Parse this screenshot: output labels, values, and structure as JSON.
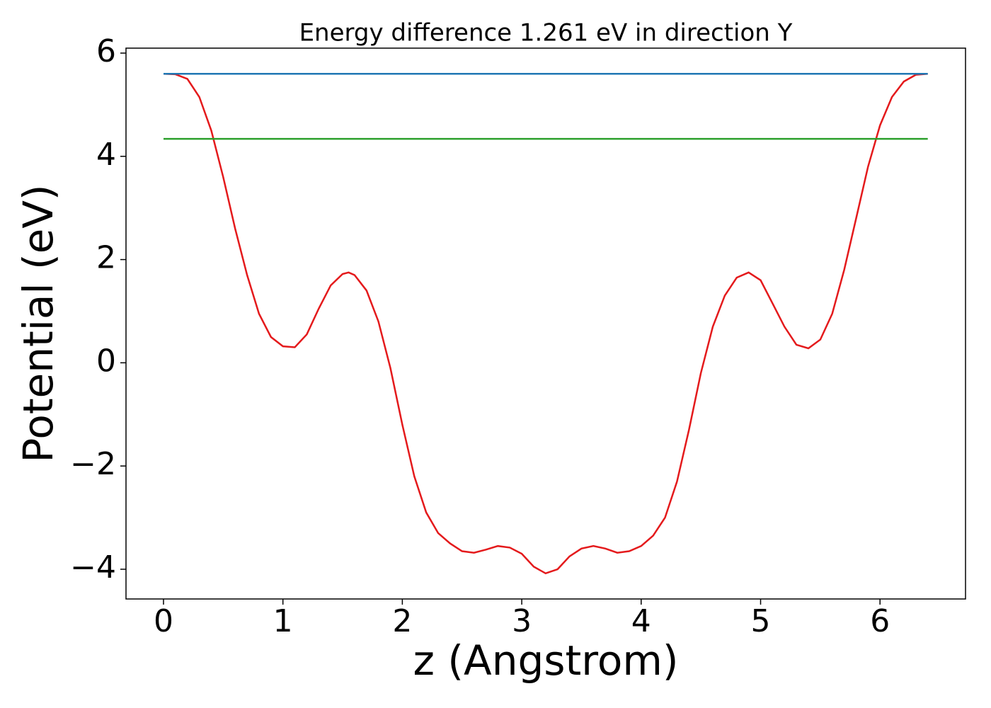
{
  "chart_data": {
    "type": "line",
    "title": "Energy difference 1.261 eV in direction Y",
    "xlabel": "z (Angstrom)",
    "ylabel": "Potential (eV)",
    "xlim": [
      -0.314,
      6.716
    ],
    "ylim": [
      -4.576,
      6.096
    ],
    "xticks": [
      0,
      1,
      2,
      3,
      4,
      5,
      6
    ],
    "yticks": [
      {
        "value": -4,
        "label": "−4"
      },
      {
        "value": -2,
        "label": "−2"
      },
      0,
      2,
      4,
      6
    ],
    "grid": false,
    "series": [
      {
        "color": "#e41a1c",
        "x": [
          0,
          0.1,
          0.2,
          0.3,
          0.4,
          0.5,
          0.6,
          0.7,
          0.8,
          0.9,
          1.0,
          1.1,
          1.2,
          1.3,
          1.4,
          1.5,
          1.55,
          1.6,
          1.7,
          1.8,
          1.9,
          2.0,
          2.1,
          2.2,
          2.3,
          2.4,
          2.5,
          2.6,
          2.7,
          2.8,
          2.9,
          3.0,
          3.1,
          3.2,
          3.3,
          3.4,
          3.5,
          3.6,
          3.7,
          3.8,
          3.9,
          4.0,
          4.1,
          4.2,
          4.3,
          4.4,
          4.5,
          4.6,
          4.7,
          4.8,
          4.9,
          5.0,
          5.1,
          5.2,
          5.3,
          5.4,
          5.5,
          5.6,
          5.7,
          5.8,
          5.9,
          6.0,
          6.1,
          6.2,
          6.3,
          6.4
        ],
        "values": [
          5.6,
          5.59,
          5.5,
          5.15,
          4.5,
          3.6,
          2.6,
          1.7,
          0.95,
          0.5,
          0.32,
          0.3,
          0.55,
          1.05,
          1.5,
          1.72,
          1.75,
          1.7,
          1.4,
          0.8,
          -0.1,
          -1.2,
          -2.2,
          -2.9,
          -3.3,
          -3.5,
          -3.65,
          -3.68,
          -3.62,
          -3.55,
          -3.58,
          -3.7,
          -3.95,
          -4.08,
          -4.0,
          -3.75,
          -3.6,
          -3.55,
          -3.6,
          -3.68,
          -3.65,
          -3.55,
          -3.35,
          -3.0,
          -2.3,
          -1.3,
          -0.2,
          0.7,
          1.3,
          1.65,
          1.75,
          1.6,
          1.15,
          0.7,
          0.35,
          0.28,
          0.45,
          0.95,
          1.8,
          2.8,
          3.8,
          4.6,
          5.15,
          5.45,
          5.58,
          5.6
        ]
      },
      {
        "color": "#1f77b4",
        "x": [
          0,
          6.4
        ],
        "values": [
          5.6,
          5.6
        ]
      },
      {
        "color": "#2ca02c",
        "x": [
          0,
          6.4
        ],
        "values": [
          4.339,
          4.339
        ]
      }
    ]
  }
}
